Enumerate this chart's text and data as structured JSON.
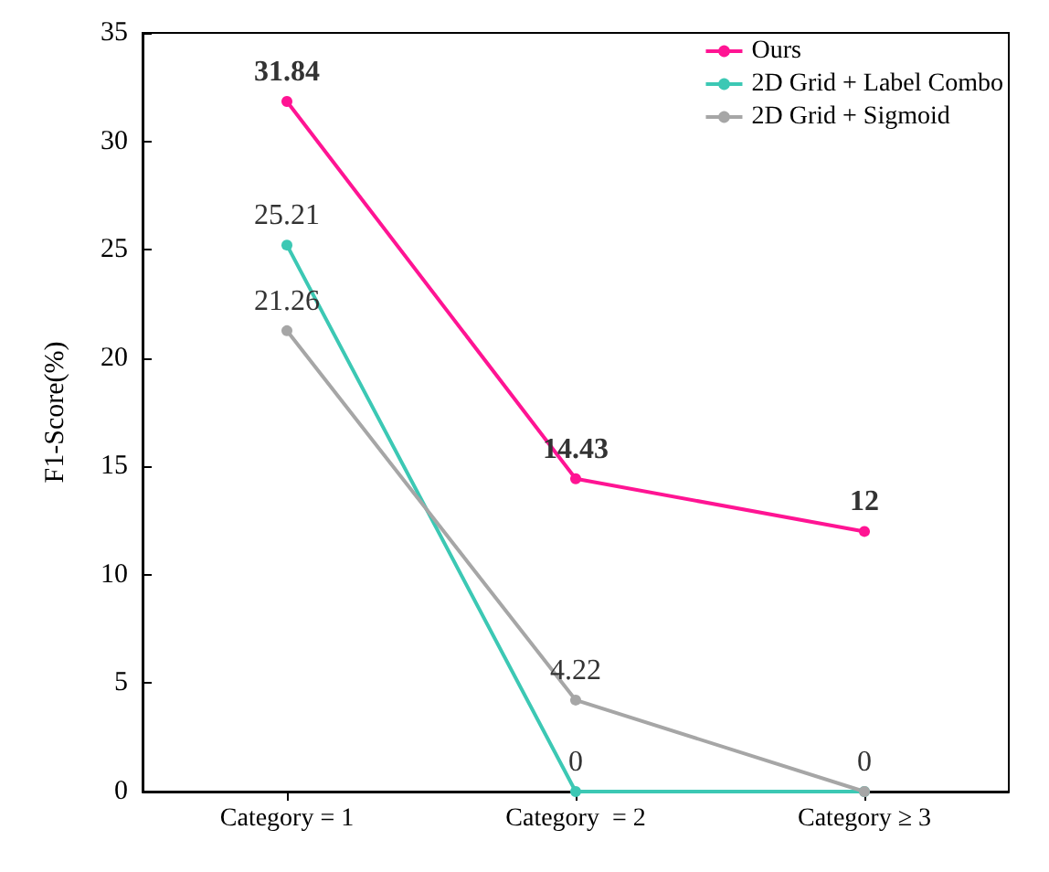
{
  "chart_data": {
    "type": "line",
    "ylabel": "F1-Score(%)",
    "categories": [
      "Category = 1",
      "Category  = 2",
      "Category ≥ 3"
    ],
    "series": [
      {
        "name": "Ours",
        "color": "#ff1493",
        "values": [
          31.84,
          14.43,
          12
        ],
        "value_labels": [
          "31.84",
          "14.43",
          "12"
        ]
      },
      {
        "name": "2D Grid + Label Combo",
        "color": "#3cc8b4",
        "values": [
          25.21,
          0,
          0
        ],
        "value_labels": [
          "25.21",
          "0",
          "0"
        ]
      },
      {
        "name": "2D Grid + Sigmoid",
        "color": "#a6a6a6",
        "values": [
          21.26,
          4.22,
          0
        ],
        "value_labels": [
          "21.26",
          "4.22",
          null
        ]
      }
    ],
    "ylim": [
      0,
      35
    ],
    "yticks": [
      0,
      5,
      10,
      15,
      20,
      25,
      30,
      35
    ],
    "grid": false,
    "legend": "top right",
    "marker": "circle",
    "line_style": "solid"
  }
}
